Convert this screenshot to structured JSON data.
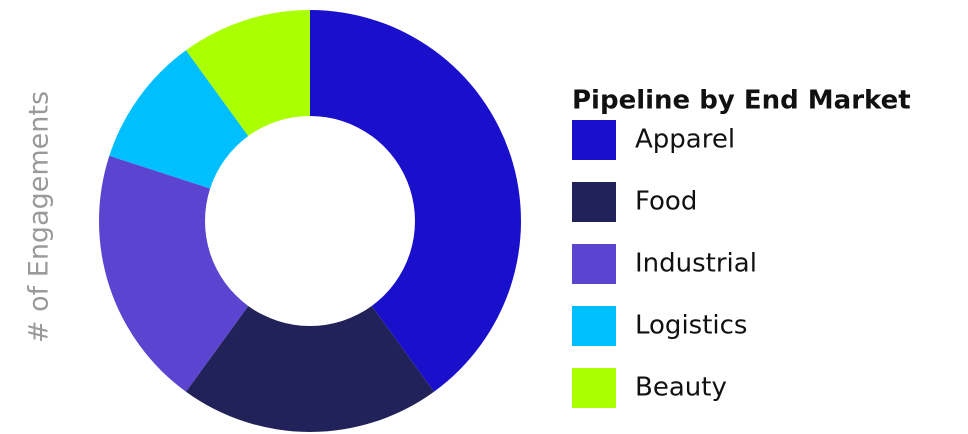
{
  "chart_data": {
    "type": "donut",
    "title": "Pipeline by End Market",
    "y_label": "# of Engagements",
    "categories": [
      "Apparel",
      "Food",
      "Industrial",
      "Logistics",
      "Beauty"
    ],
    "values": [
      40,
      20,
      20,
      10,
      10
    ],
    "colors": [
      "#1a10cc",
      "#22225a",
      "#5b45d0",
      "#00bfff",
      "#aaff00"
    ]
  }
}
